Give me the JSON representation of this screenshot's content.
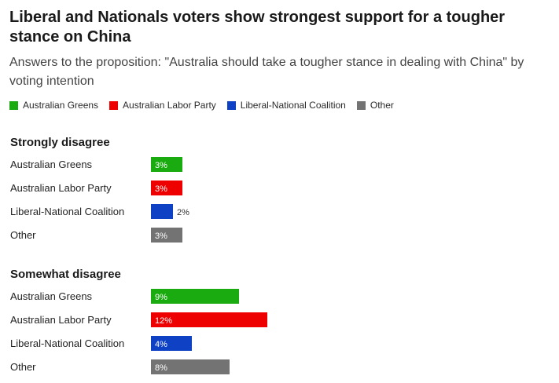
{
  "chart_data": {
    "type": "bar",
    "title": "Liberal and Nationals voters show strongest support for a tougher stance on China",
    "subtitle": "Answers to the proposition: \"Australia should take a tougher stance in dealing with China\" by voting intention",
    "legend_position": "top-left",
    "parties": [
      "Australian Greens",
      "Australian Labor Party",
      "Liberal-National Coalition",
      "Other"
    ],
    "colors": {
      "Australian Greens": "#1aab10",
      "Australian Labor Party": "#ee0000",
      "Liberal-National Coalition": "#0f41c4",
      "Other": "#737373"
    },
    "groups": [
      {
        "name": "Strongly disagree",
        "values": [
          3,
          3,
          2,
          3
        ],
        "labels": [
          "3%",
          "3%",
          "2%",
          "3%"
        ]
      },
      {
        "name": "Somewhat disagree",
        "values": [
          9,
          12,
          4,
          8
        ],
        "labels": [
          "9%",
          "12%",
          "4%",
          "8%"
        ]
      }
    ]
  }
}
